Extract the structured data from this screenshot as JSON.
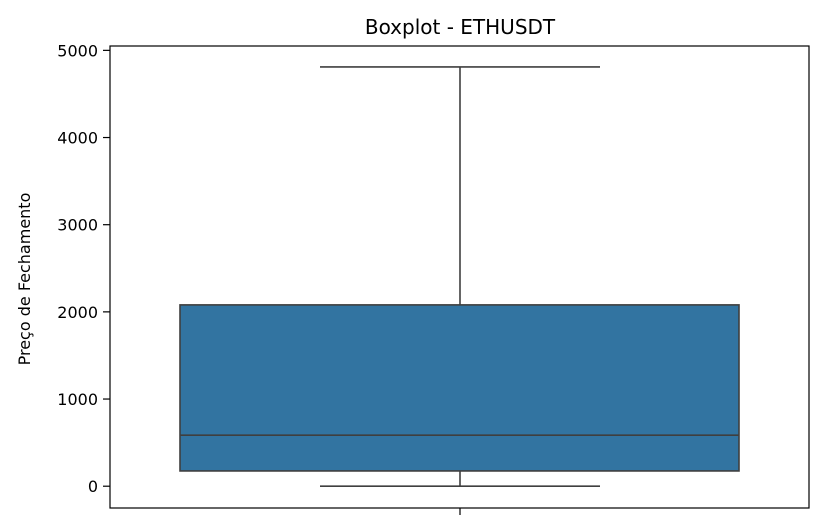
{
  "chart_data": {
    "type": "boxplot",
    "title": "Boxplot - ETHUSDT",
    "xlabel": "",
    "ylabel": "Preço de Fechamento",
    "ylim": [
      -250,
      5050
    ],
    "yticks": [
      0,
      1000,
      2000,
      3000,
      4000,
      5000
    ],
    "grid": false,
    "box": {
      "whisker_low": 0,
      "q1": 175,
      "median": 585,
      "q3": 2080,
      "whisker_high": 4810,
      "color": "#3274a1",
      "edge_color": "#3f3f3f"
    }
  }
}
